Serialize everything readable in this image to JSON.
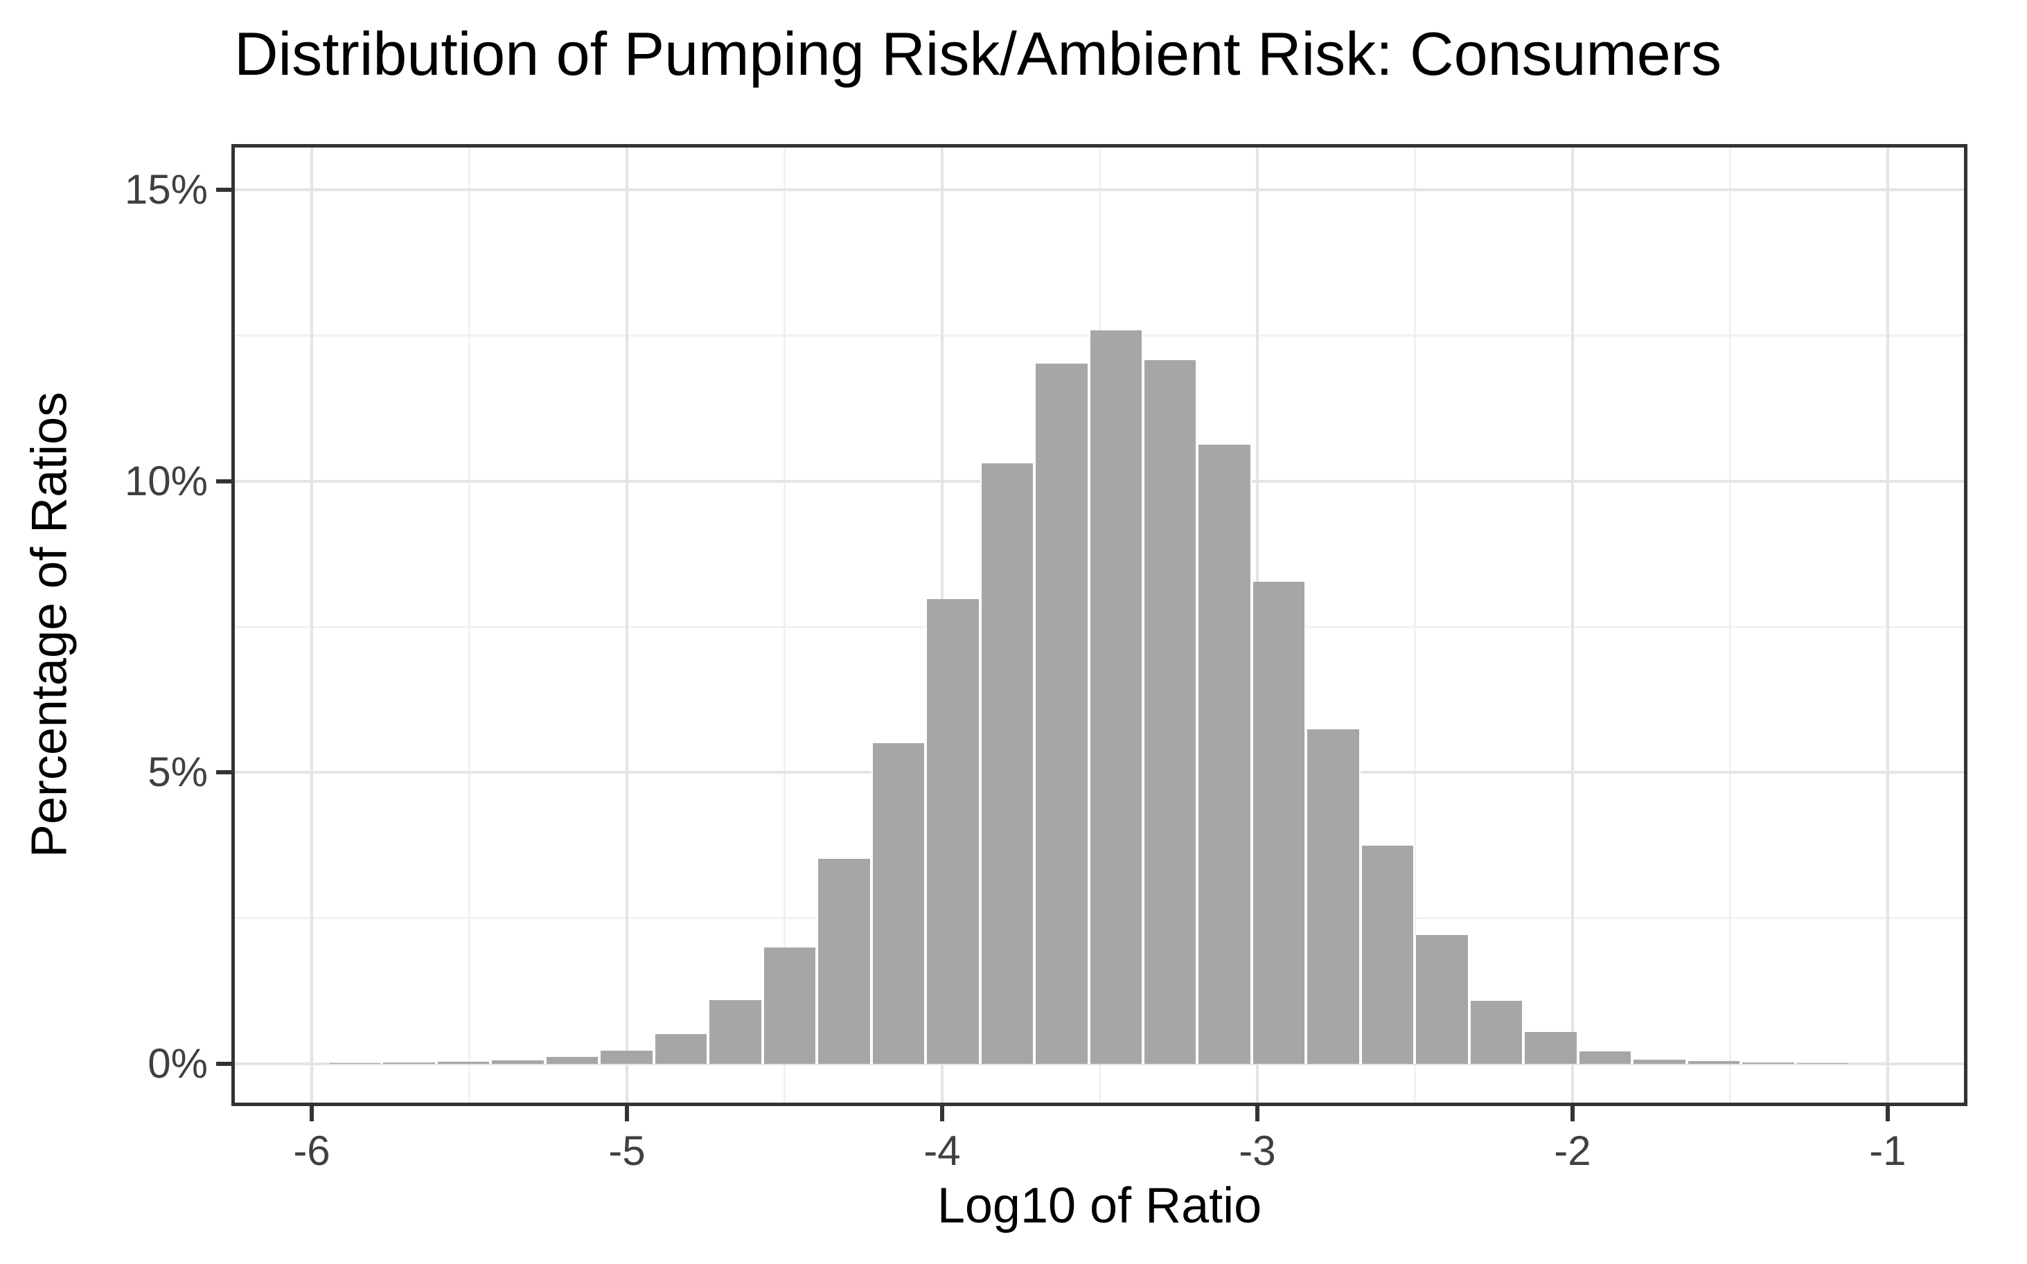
{
  "page": {
    "background_color": "#ffffff"
  },
  "chart_data": {
    "type": "bar",
    "subtype": "histogram",
    "title": "Distribution of Pumping Risk/Ambient Risk: Consumers",
    "xlabel": "Log10 of Ratio",
    "ylabel": "Percentage of Ratios",
    "legend": "none",
    "grid": "on",
    "x_range": [
      -6.255,
      -0.747
    ],
    "y_range": [
      -0.72,
      15.78
    ],
    "x_ticks": [
      {
        "v": -6,
        "label": "-6"
      },
      {
        "v": -5,
        "label": "-5"
      },
      {
        "v": -4,
        "label": "-4"
      },
      {
        "v": -3,
        "label": "-3"
      },
      {
        "v": -2,
        "label": "-2"
      },
      {
        "v": -1,
        "label": "-1"
      }
    ],
    "y_ticks": [
      {
        "v": 0,
        "label": "0%"
      },
      {
        "v": 5,
        "label": "5%"
      },
      {
        "v": 10,
        "label": "10%"
      },
      {
        "v": 15,
        "label": "15%"
      }
    ],
    "x_minor_gridlines": [
      -5.5,
      -4.5,
      -3.5,
      -2.5,
      -1.5
    ],
    "y_minor_gridlines": [
      2.5,
      7.5,
      12.5
    ],
    "bins": {
      "start": -5.95,
      "width": 0.1725,
      "values_pct": [
        0.02,
        0.03,
        0.04,
        0.06,
        0.12,
        0.23,
        0.51,
        1.1,
        2.0,
        3.52,
        5.51,
        7.97,
        10.3,
        12.01,
        12.59,
        12.07,
        10.62,
        8.27,
        5.74,
        3.75,
        2.21,
        1.08,
        0.55,
        0.22,
        0.08,
        0.05,
        0.03,
        0.02
      ]
    },
    "colors": {
      "bar_fill": "#a6a6a6",
      "bar_gap": "#ffffff",
      "panel_border": "#333333",
      "major_grid": "#e4e4e4",
      "minor_grid": "#f1f1f1",
      "axis_text": "#404040",
      "title_text": "#000000"
    }
  }
}
